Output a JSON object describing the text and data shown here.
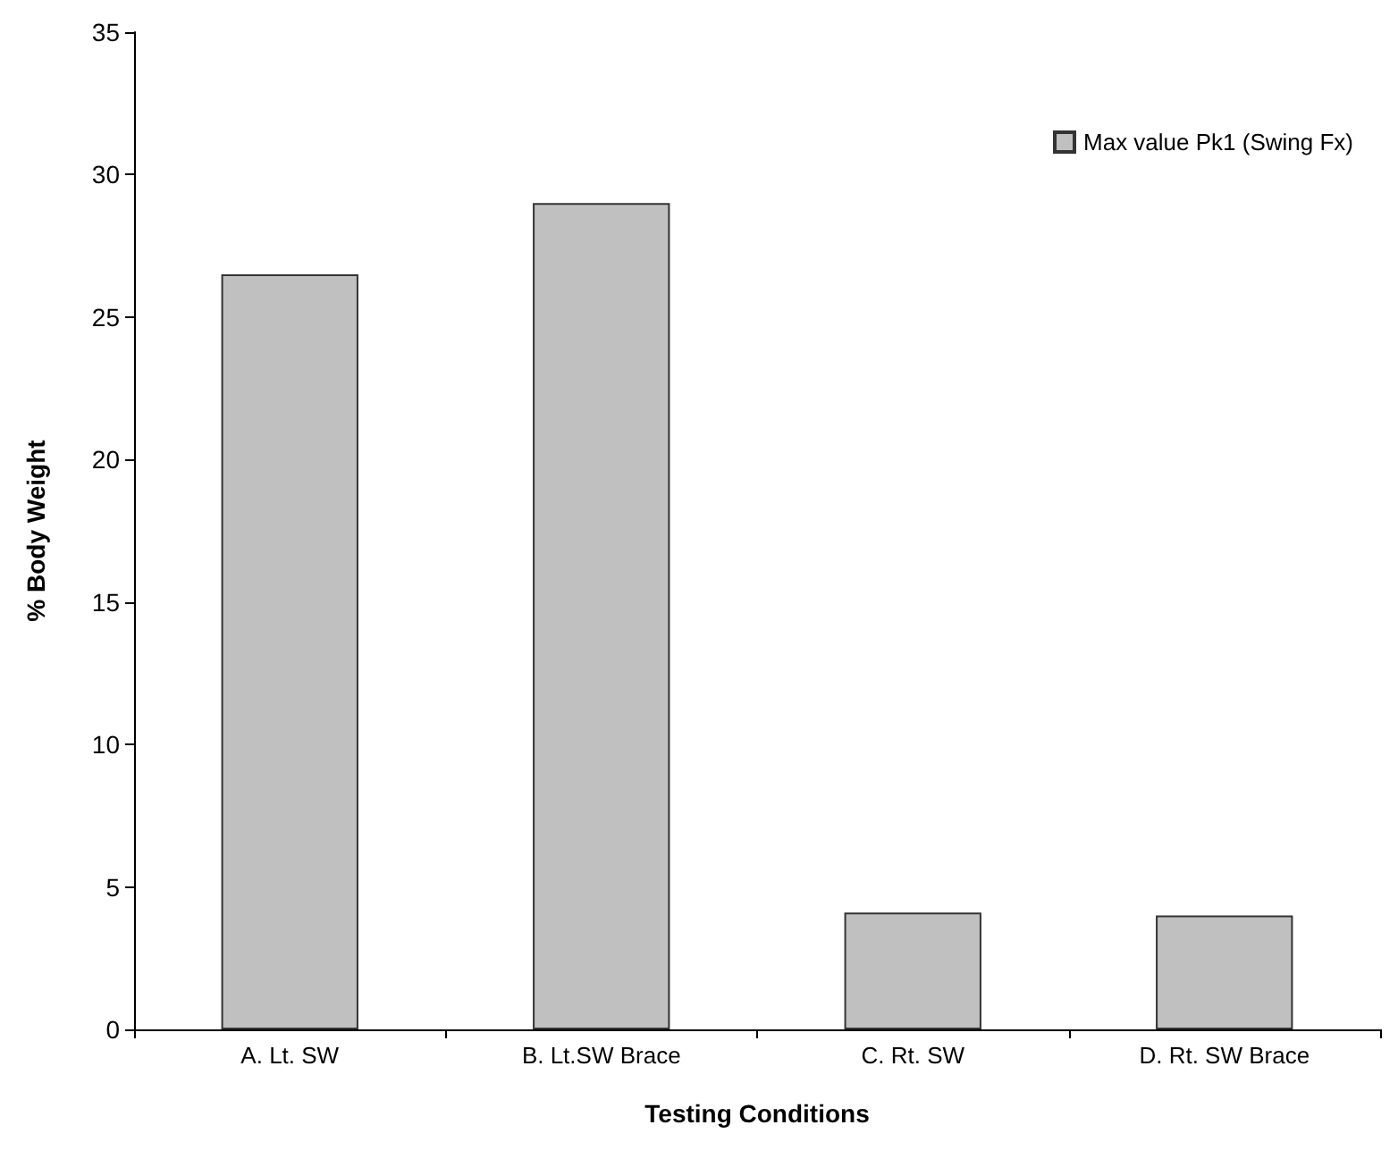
{
  "chart_data": {
    "type": "bar",
    "xlabel": "Testing Conditions",
    "ylabel": "% Body Weight",
    "categories": [
      "A. Lt. SW",
      "B. Lt.SW Brace",
      "C. Rt. SW",
      "D. Rt. SW Brace"
    ],
    "series": [
      {
        "name": "Max value Pk1 (Swing Fx)",
        "color": "#c0c0c0",
        "values": [
          26.5,
          29,
          4.1,
          4.0
        ]
      }
    ],
    "ylim": [
      0,
      35
    ],
    "yticks": [
      0,
      5,
      10,
      15,
      20,
      25,
      30,
      35
    ],
    "grid": false,
    "legend": "top right"
  }
}
